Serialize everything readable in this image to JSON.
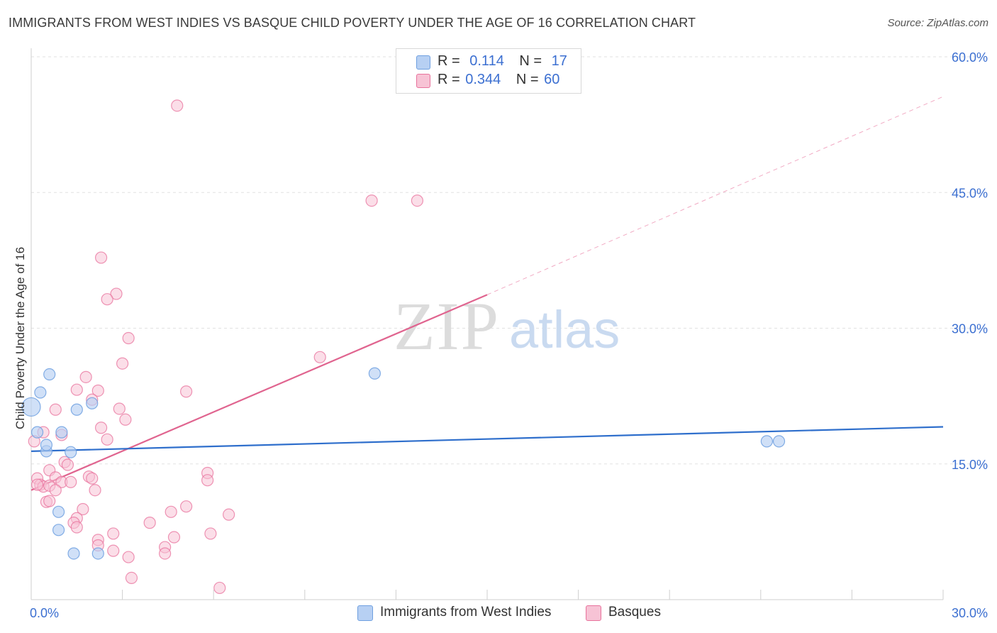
{
  "title": "IMMIGRANTS FROM WEST INDIES VS BASQUE CHILD POVERTY UNDER THE AGE OF 16 CORRELATION CHART",
  "source": "Source: ZipAtlas.com",
  "watermark": {
    "zip": "ZIP",
    "atlas": "atlas"
  },
  "legend": {
    "series1": {
      "r_label": "R =",
      "r_value": "0.114",
      "n_label": "N =",
      "n_value": "17"
    },
    "series2": {
      "r_label": "R =",
      "r_value": "0.344",
      "n_label": "N =",
      "n_value": "60"
    }
  },
  "bottom_legend": {
    "series1": "Immigrants from West Indies",
    "series2": "Basques"
  },
  "colors": {
    "blue": "#6fa0e0",
    "blue_fill": "#b7d0f3",
    "pink": "#e8729c",
    "pink_fill": "#f7c3d5",
    "trend_blue": "#2f6fcc",
    "trend_pink": "#e0648f",
    "tick_blue": "#3b6fd1"
  },
  "chart_data": {
    "type": "scatter",
    "xlabel": "",
    "ylabel": "Child Poverty Under the Age of 16",
    "xlim": [
      0,
      30
    ],
    "ylim": [
      0,
      60
    ],
    "x_tick_labels": [
      {
        "value": 0,
        "label": "0.0%"
      },
      {
        "value": 30,
        "label": "30.0%"
      }
    ],
    "y_tick_labels": [
      {
        "value": 15,
        "label": "15.0%"
      },
      {
        "value": 30,
        "label": "30.0%"
      },
      {
        "value": 45,
        "label": "45.0%"
      },
      {
        "value": 60,
        "label": "60.0%"
      }
    ],
    "grid": true,
    "series": [
      {
        "name": "Immigrants from West Indies",
        "points": [
          [
            0.0,
            21.3
          ],
          [
            0.2,
            18.5
          ],
          [
            0.3,
            22.9
          ],
          [
            0.5,
            16.4
          ],
          [
            0.6,
            24.9
          ],
          [
            0.5,
            17.1
          ],
          [
            1.0,
            18.5
          ],
          [
            1.3,
            16.3
          ],
          [
            1.5,
            21.0
          ],
          [
            2.0,
            21.7
          ],
          [
            0.9,
            9.7
          ],
          [
            0.9,
            7.7
          ],
          [
            1.4,
            5.1
          ],
          [
            2.2,
            5.1
          ],
          [
            11.3,
            25.0
          ],
          [
            24.2,
            17.5
          ],
          [
            24.6,
            17.5
          ]
        ],
        "trend": {
          "x": [
            0,
            30
          ],
          "y": [
            16.4,
            19.1
          ]
        }
      },
      {
        "name": "Basques",
        "points": [
          [
            4.8,
            54.6
          ],
          [
            11.2,
            44.1
          ],
          [
            12.7,
            44.1
          ],
          [
            2.3,
            37.8
          ],
          [
            2.8,
            33.8
          ],
          [
            2.5,
            33.2
          ],
          [
            3.2,
            28.9
          ],
          [
            3.0,
            26.1
          ],
          [
            9.5,
            26.8
          ],
          [
            1.8,
            24.6
          ],
          [
            2.2,
            23.1
          ],
          [
            1.5,
            23.2
          ],
          [
            5.1,
            23.0
          ],
          [
            2.0,
            22.1
          ],
          [
            0.8,
            21.0
          ],
          [
            2.9,
            21.1
          ],
          [
            3.1,
            19.9
          ],
          [
            2.3,
            19.0
          ],
          [
            1.0,
            18.2
          ],
          [
            2.5,
            17.7
          ],
          [
            0.1,
            17.5
          ],
          [
            0.4,
            18.5
          ],
          [
            1.1,
            15.2
          ],
          [
            1.2,
            14.9
          ],
          [
            0.6,
            14.3
          ],
          [
            0.8,
            13.5
          ],
          [
            1.9,
            13.6
          ],
          [
            2.0,
            13.4
          ],
          [
            1.0,
            13.0
          ],
          [
            1.3,
            13.0
          ],
          [
            0.2,
            13.4
          ],
          [
            0.3,
            12.7
          ],
          [
            0.4,
            12.5
          ],
          [
            0.6,
            12.6
          ],
          [
            0.8,
            12.1
          ],
          [
            2.1,
            12.1
          ],
          [
            5.8,
            14.0
          ],
          [
            5.8,
            13.2
          ],
          [
            0.5,
            10.8
          ],
          [
            0.6,
            10.9
          ],
          [
            1.7,
            10.0
          ],
          [
            4.6,
            9.7
          ],
          [
            5.1,
            10.3
          ],
          [
            6.5,
            9.4
          ],
          [
            1.5,
            9.0
          ],
          [
            1.4,
            8.5
          ],
          [
            1.5,
            8.0
          ],
          [
            3.9,
            8.5
          ],
          [
            2.7,
            7.3
          ],
          [
            4.7,
            6.9
          ],
          [
            5.9,
            7.3
          ],
          [
            2.2,
            6.6
          ],
          [
            2.2,
            6.0
          ],
          [
            2.7,
            5.4
          ],
          [
            4.4,
            5.8
          ],
          [
            4.4,
            5.1
          ],
          [
            3.2,
            4.7
          ],
          [
            3.3,
            2.4
          ],
          [
            6.2,
            1.3
          ],
          [
            0.2,
            12.7
          ]
        ],
        "trend": {
          "x": [
            0,
            15
          ],
          "y": [
            12.1,
            33.7
          ]
        },
        "trend_extension": {
          "x": [
            15,
            30
          ],
          "y": [
            33.7,
            55.6
          ]
        }
      }
    ]
  }
}
